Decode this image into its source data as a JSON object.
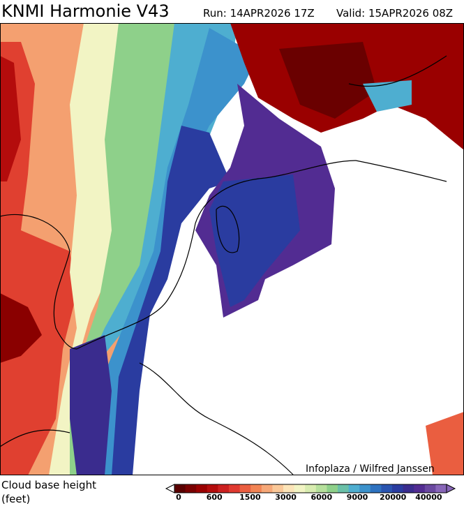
{
  "header": {
    "title": "KNMI Harmonie V43",
    "run": "Run: 14APR2026 17Z",
    "valid": "Valid: 15APR2026 08Z"
  },
  "credit": "Infoplaza / Wilfred Janssen",
  "legend": {
    "title": [
      "Cloud base height",
      "(feet)"
    ],
    "ticks": [
      "0",
      "600",
      "1500",
      "3000",
      "6000",
      "9000",
      "20000",
      "40000"
    ],
    "colors": [
      "#5a0000",
      "#7a0000",
      "#9a0000",
      "#b40c0c",
      "#cc2020",
      "#e03a30",
      "#ea5e40",
      "#f28454",
      "#f6a878",
      "#fac898",
      "#fce4b8",
      "#f2f4c4",
      "#d8ecb0",
      "#b6e09c",
      "#8ed08a",
      "#6ac0a8",
      "#4eaed0",
      "#3c92cc",
      "#2e72c0",
      "#2a54b0",
      "#2a3ca0",
      "#3a2c8e",
      "#522c92",
      "#6a48a0",
      "#8866b8"
    ]
  }
}
